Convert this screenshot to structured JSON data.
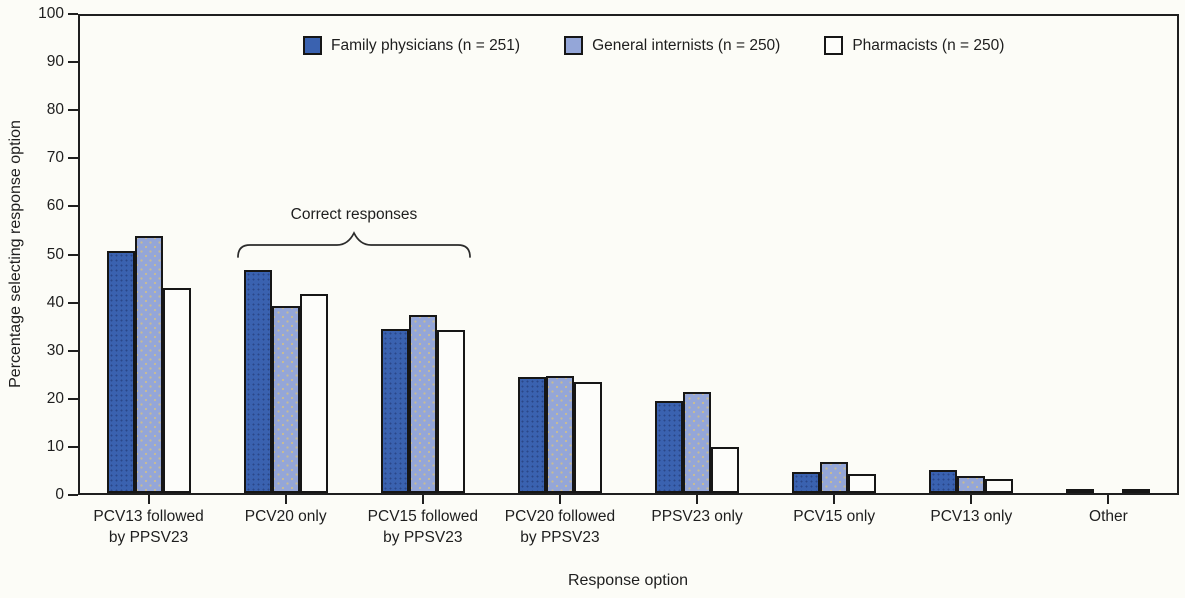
{
  "chart_data": {
    "type": "bar",
    "title": "",
    "xlabel": "Response option",
    "ylabel": "Percentage selecting response option",
    "ylim": [
      0,
      100
    ],
    "yticks": [
      0,
      10,
      20,
      30,
      40,
      50,
      60,
      70,
      80,
      90,
      100
    ],
    "grid": false,
    "legend_position": "top",
    "categories": [
      "PCV13 followed\nby PPSV23",
      "PCV20 only",
      "PCV15 followed\nby PPSV23",
      "PCV20 followed\nby PPSV23",
      "PPSV23 only",
      "PCV15 only",
      "PCV13 only",
      "Other"
    ],
    "series": [
      {
        "name": "Family physicians (n = 251)",
        "color": "#3a62b0",
        "values": [
          50.8,
          46.7,
          34.4,
          24.4,
          19.2,
          4.4,
          4.9,
          0.9
        ]
      },
      {
        "name": "General internists (n = 250)",
        "color": "#94a6d8",
        "values": [
          53.8,
          39.3,
          37.3,
          24.5,
          21.2,
          6.4,
          3.6,
          0
        ]
      },
      {
        "name": "Pharmacists (n = 250)",
        "color": "#fdfdfa",
        "values": [
          43.0,
          41.7,
          34.1,
          23.3,
          9.7,
          4.0,
          2.9,
          0.9
        ]
      }
    ],
    "annotation": {
      "label": "Correct responses",
      "spans_categories": [
        "PCV20 only",
        "PCV15 followed\nby PPSV23"
      ]
    }
  }
}
